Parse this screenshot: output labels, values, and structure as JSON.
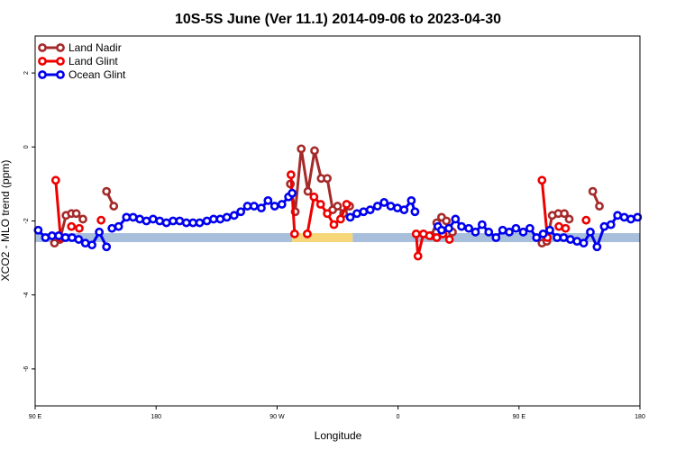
{
  "chart_data": {
    "type": "line",
    "title": "10S-5S June (Ver 11.1)   2014-09-06 to 2023-04-30",
    "xlabel": "Longitude",
    "ylabel": "XCO2 - MLO trend (ppm)",
    "xlim": [
      0,
      100
    ],
    "ylim": [
      -7,
      3
    ],
    "xticks": [
      {
        "pos": 0,
        "label": "90 E"
      },
      {
        "pos": 20,
        "label": "180"
      },
      {
        "pos": 40,
        "label": "90 W"
      },
      {
        "pos": 60,
        "label": "0"
      },
      {
        "pos": 80,
        "label": "90 E"
      },
      {
        "pos": 100,
        "label": "180"
      }
    ],
    "yticks": [
      -6,
      -4,
      -2,
      0,
      2
    ],
    "grid": false,
    "legend_position": "top-left",
    "band_y": -2.45,
    "band_segments": [
      {
        "x": [
          0,
          42.5
        ],
        "color": "#a8bfdc"
      },
      {
        "x": [
          42.5,
          52.5
        ],
        "color": "#f5d77a"
      },
      {
        "x": [
          52.5,
          100
        ],
        "color": "#a8bfdc"
      }
    ],
    "series": [
      {
        "name": "Land Nadir",
        "color": "#a52a2a",
        "segments": [
          {
            "x": [
              3.2,
              4.1,
              5.1,
              6.0,
              6.8,
              7.9
            ],
            "y": [
              -2.6,
              -2.5,
              -1.85,
              -1.8,
              -1.8,
              -1.95
            ]
          },
          {
            "x": [
              11.8,
              13.0
            ],
            "y": [
              -1.2,
              -1.6
            ]
          },
          {
            "x": [
              42.2,
              43.0,
              44.0,
              45.1,
              46.2,
              47.3,
              48.3,
              49.2,
              50.0,
              51.0,
              52.0
            ],
            "y": [
              -1.0,
              -1.75,
              -0.05,
              -1.2,
              -0.1,
              -0.85,
              -0.85,
              -1.7,
              -1.6,
              -1.8,
              -1.6
            ]
          },
          {
            "x": [
              65.5,
              66.4,
              67.2,
              68.0,
              69.0
            ],
            "y": [
              -2.4,
              -2.05,
              -1.9,
              -2.0,
              -2.3
            ]
          },
          {
            "x": [
              83.8,
              84.6,
              85.5,
              86.5,
              87.5,
              88.3
            ],
            "y": [
              -2.6,
              -2.55,
              -1.85,
              -1.8,
              -1.8,
              -1.95
            ]
          },
          {
            "x": [
              92.2,
              93.3
            ],
            "y": [
              -1.2,
              -1.6
            ]
          }
        ]
      },
      {
        "name": "Land Glint",
        "color": "#ee0000",
        "segments": [
          {
            "x": [
              3.4,
              4.2
            ],
            "y": [
              -0.9,
              -2.45
            ]
          },
          {
            "x": [
              6.0,
              7.3
            ],
            "y": [
              -2.15,
              -2.2
            ]
          },
          {
            "x": [
              10.9
            ],
            "y": [
              -1.98
            ]
          },
          {
            "x": [
              42.3,
              42.9
            ],
            "y": [
              -0.75,
              -2.35
            ]
          },
          {
            "x": [
              45.0,
              46.1,
              47.2,
              48.3,
              49.4,
              50.5,
              51.5
            ],
            "y": [
              -2.35,
              -1.35,
              -1.55,
              -1.8,
              -2.1,
              -1.95,
              -1.55
            ]
          },
          {
            "x": [
              63.0,
              63.3,
              64.2,
              65.2,
              66.4,
              67.4,
              68.5
            ],
            "y": [
              -2.35,
              -2.95,
              -2.35,
              -2.4,
              -2.45,
              -2.35,
              -2.5
            ]
          },
          {
            "x": [
              83.8,
              84.7
            ],
            "y": [
              -0.9,
              -2.45
            ]
          },
          {
            "x": [
              86.6,
              87.7
            ],
            "y": [
              -2.15,
              -2.2
            ]
          },
          {
            "x": [
              91.1
            ],
            "y": [
              -1.98
            ]
          }
        ]
      },
      {
        "name": "Ocean Glint",
        "color": "#0000ee",
        "segments": [
          {
            "x": [
              0.5,
              1.7,
              2.8,
              3.9,
              5.0,
              6.1,
              7.2,
              8.3,
              9.4,
              10.6,
              11.8
            ],
            "y": [
              -2.25,
              -2.45,
              -2.4,
              -2.4,
              -2.45,
              -2.45,
              -2.5,
              -2.6,
              -2.65,
              -2.3,
              -2.7
            ]
          },
          {
            "x": [
              12.7,
              13.8,
              15.1,
              16.2,
              17.3,
              18.4,
              19.5,
              20.6,
              21.7,
              22.8,
              23.9,
              25.0,
              26.1,
              27.2,
              28.4,
              29.5,
              30.6,
              31.7,
              32.9,
              34.0,
              35.1,
              36.2,
              37.4,
              38.5,
              39.6,
              40.8,
              41.9,
              42.5
            ],
            "y": [
              -2.2,
              -2.15,
              -1.9,
              -1.9,
              -1.95,
              -2.0,
              -1.95,
              -2.0,
              -2.05,
              -2.0,
              -2.0,
              -2.05,
              -2.05,
              -2.05,
              -2.0,
              -1.95,
              -1.95,
              -1.9,
              -1.85,
              -1.75,
              -1.6,
              -1.6,
              -1.65,
              -1.45,
              -1.6,
              -1.55,
              -1.35,
              -1.25
            ]
          },
          {
            "x": [
              52.1,
              53.2,
              54.3,
              55.4,
              56.6,
              57.7,
              58.8,
              59.9,
              61.0,
              62.2,
              62.8
            ],
            "y": [
              -1.9,
              -1.8,
              -1.75,
              -1.7,
              -1.6,
              -1.5,
              -1.6,
              -1.65,
              -1.7,
              -1.45,
              -1.75
            ]
          },
          {
            "x": [
              66.6,
              67.2,
              68.4,
              69.5,
              70.5,
              71.7,
              72.8,
              73.9,
              75.0,
              76.2,
              77.3,
              78.4,
              79.5,
              80.7,
              81.8,
              82.9,
              84.0,
              85.1,
              86.3,
              87.4,
              88.5,
              89.6,
              90.7,
              91.8,
              92.9,
              94.1,
              95.2,
              96.3,
              97.4,
              98.5,
              99.6
            ],
            "y": [
              -2.15,
              -2.25,
              -2.2,
              -1.95,
              -2.15,
              -2.2,
              -2.3,
              -2.1,
              -2.3,
              -2.45,
              -2.25,
              -2.3,
              -2.2,
              -2.3,
              -2.2,
              -2.45,
              -2.35,
              -2.25,
              -2.45,
              -2.45,
              -2.5,
              -2.55,
              -2.6,
              -2.3,
              -2.7,
              -2.15,
              -2.1,
              -1.85,
              -1.9,
              -1.95,
              -1.9
            ]
          }
        ]
      }
    ]
  }
}
